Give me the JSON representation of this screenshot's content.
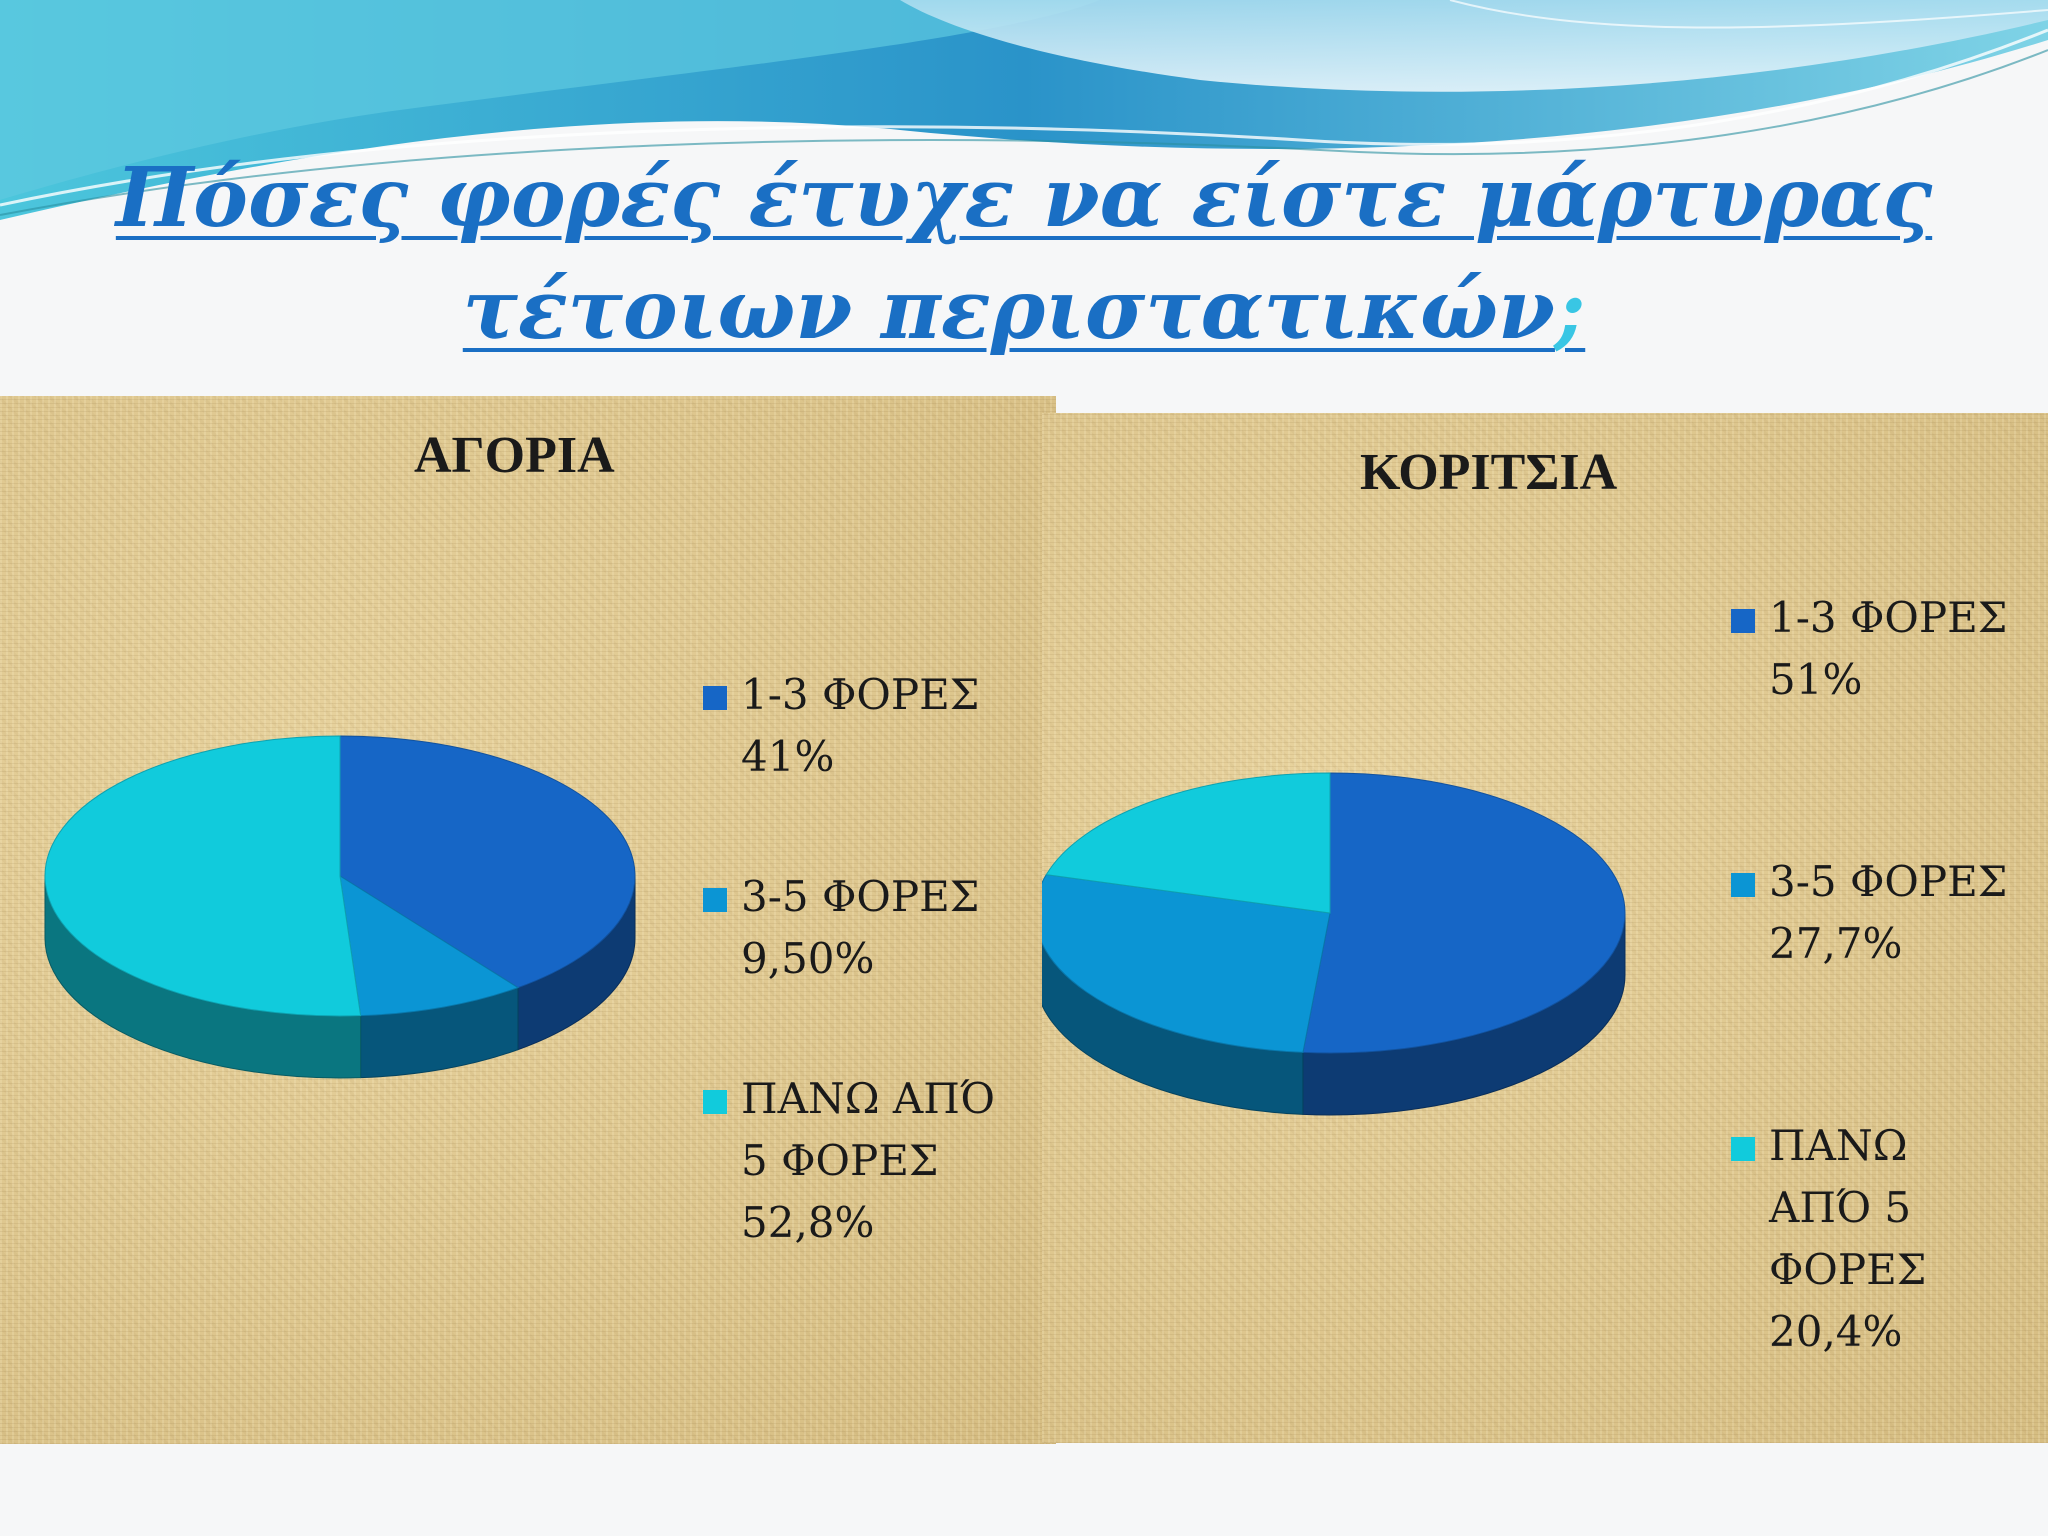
{
  "title": {
    "line1": "Πόσες φορές έτυχε να είστε μάρτυρας",
    "line2": "τέτοιων περιστατικών",
    "mark": ";"
  },
  "colors": {
    "series_1": "#1666c6",
    "series_2": "#0b95d4",
    "series_3": "#11cbdc",
    "title": "#1a6fc4"
  },
  "chart_data": [
    {
      "type": "pie",
      "title": "ΑΓΟΡΙΑ",
      "categories": [
        "1-3 ΦΟΡΕΣ",
        "3-5 ΦΟΡΕΣ",
        "ΠΑΝΩ ΑΠΌ 5 ΦΟΡΕΣ"
      ],
      "values": [
        41,
        9.5,
        52.8
      ],
      "value_labels": [
        "41%",
        "9,50%",
        "52,8%"
      ],
      "legend_lines": [
        [
          "1-3 ΦΟΡΕΣ",
          "41%"
        ],
        [
          "3-5 ΦΟΡΕΣ",
          "9,50%"
        ],
        [
          "ΠΑΝΩ ΑΠΌ",
          "5 ΦΟΡΕΣ",
          "52,8%"
        ]
      ],
      "legend_position": "right",
      "style": "3d"
    },
    {
      "type": "pie",
      "title": "ΚΟΡΙΤΣΙΑ",
      "categories": [
        "1-3 ΦΟΡΕΣ",
        "3-5 ΦΟΡΕΣ",
        "ΠΑΝΩ ΑΠΌ 5 ΦΟΡΕΣ"
      ],
      "values": [
        51,
        27.7,
        20.4
      ],
      "value_labels": [
        "51%",
        "27,7%",
        "20,4%"
      ],
      "legend_lines": [
        [
          "1-3 ΦΟΡΕΣ",
          "51%"
        ],
        [
          "3-5 ΦΟΡΕΣ",
          "27,7%"
        ],
        [
          "ΠΑΝΩ",
          "ΑΠΌ 5",
          "ΦΟΡΕΣ",
          "20,4%"
        ]
      ],
      "legend_position": "right",
      "style": "3d"
    }
  ]
}
